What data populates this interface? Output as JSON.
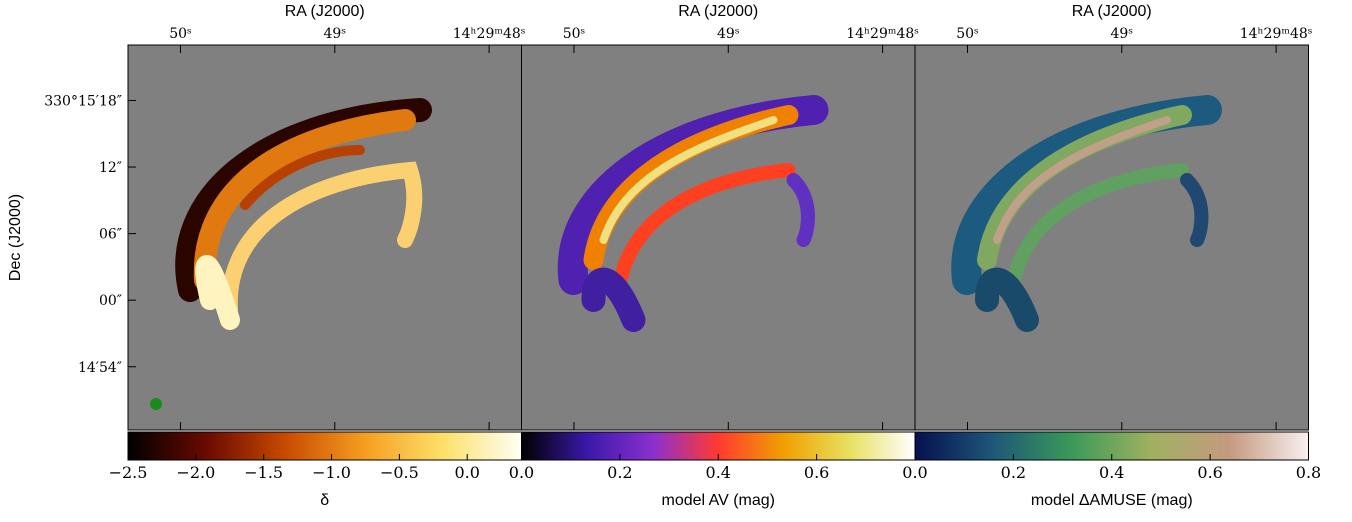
{
  "chart_data": [
    {
      "type": "image",
      "x_label": "RA (J2000)",
      "y_label": "Dec (J2000)",
      "xlim": [
        50.34,
        47.79
      ],
      "xticks": [
        {
          "value": 50,
          "label": "50ˢ"
        },
        {
          "value": 49,
          "label": "49ˢ"
        },
        {
          "value": 48,
          "label": "14ʰ29ᵐ48ˢ"
        }
      ],
      "ylim": [
        -11.7,
        23
      ],
      "yticks": [
        {
          "value": 18,
          "label": "330°15′18″"
        },
        {
          "value": 12,
          "label": "12″"
        },
        {
          "value": 6,
          "label": "06″"
        },
        {
          "value": 0,
          "label": "00″"
        },
        {
          "value": -6,
          "label": "14′54″"
        }
      ],
      "colorbar": {
        "label": "δ",
        "lim": [
          -2.5,
          0.4
        ],
        "colormap": [
          "#000000",
          "#6a0a00",
          "#c84a00",
          "#f59d20",
          "#fde06a",
          "#fffff4"
        ],
        "ticks": [
          {
            "value": -2.5,
            "label": "−2.5"
          },
          {
            "value": -2.0,
            "label": "−2.0"
          },
          {
            "value": -1.5,
            "label": "−1.5"
          },
          {
            "value": -1.0,
            "label": "−1.0"
          },
          {
            "value": -0.5,
            "label": "−0.5"
          },
          {
            "value": 0.0,
            "label": "0.0"
          }
        ]
      }
    },
    {
      "type": "image",
      "x_label": "RA (J2000)",
      "xlim": [
        50.34,
        47.79
      ],
      "xticks": [
        {
          "value": 50,
          "label": "50ˢ"
        },
        {
          "value": 49,
          "label": "49ˢ"
        },
        {
          "value": 48,
          "label": "14ʰ29ᵐ48ˢ"
        }
      ],
      "ylim": [
        -11.7,
        23
      ],
      "colorbar": {
        "label": "model AV (mag)",
        "lim": [
          0,
          0.8
        ],
        "colormap": [
          "#000000",
          "#3a18a8",
          "#8a30d0",
          "#ff3a30",
          "#f0a000",
          "#e8e060",
          "#ffffff"
        ],
        "ticks": [
          {
            "value": 0,
            "label": "0.0"
          },
          0.2,
          0.4,
          0.6
        ]
      }
    },
    {
      "type": "image",
      "x_label": "RA (J2000)",
      "xlim": [
        50.34,
        47.79
      ],
      "xticks": [
        {
          "value": 50,
          "label": "50ˢ"
        },
        {
          "value": 49,
          "label": "49ˢ"
        },
        {
          "value": 48,
          "label": "14ʰ29ᵐ48ˢ"
        }
      ],
      "ylim": [
        -11.7,
        23
      ],
      "colorbar": {
        "label": "model ΔAMUSE (mag)",
        "lim": [
          0,
          0.8
        ],
        "colormap": [
          "#061050",
          "#1e5878",
          "#3a9a58",
          "#a0b060",
          "#c49a80",
          "#f8f0f0"
        ],
        "ticks": [
          {
            "value": 0,
            "label": "0.0"
          },
          0.2,
          0.4,
          0.6,
          0.8
        ]
      }
    }
  ]
}
